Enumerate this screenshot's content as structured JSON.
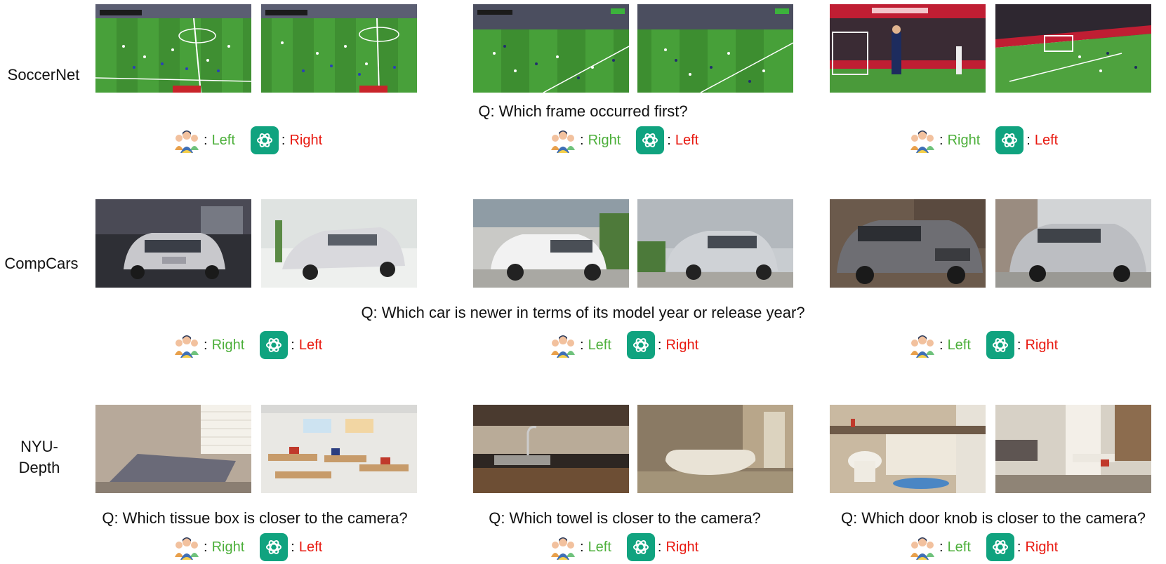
{
  "rows": [
    {
      "dataset": "SoccerNet",
      "questions": [
        "",
        "Q: Which frame occurred first?",
        ""
      ],
      "answers": [
        {
          "human": "Left",
          "gpt": "Right"
        },
        {
          "human": "Right",
          "gpt": "Left"
        },
        {
          "human": "Right",
          "gpt": "Left"
        }
      ]
    },
    {
      "dataset": "CompCars",
      "questions": [
        "",
        "Q: Which car is newer in terms of its model year or release year?",
        ""
      ],
      "answers": [
        {
          "human": "Right",
          "gpt": "Left"
        },
        {
          "human": "Left",
          "gpt": "Right"
        },
        {
          "human": "Left",
          "gpt": "Right"
        }
      ]
    },
    {
      "dataset_line1": "NYU-",
      "dataset_line2": "Depth",
      "questions": [
        "Q: Which tissue box is closer to the camera?",
        "Q: Which towel is closer to the camera?",
        "Q: Which door knob is closer to the camera?"
      ],
      "answers": [
        {
          "human": "Right",
          "gpt": "Left"
        },
        {
          "human": "Left",
          "gpt": "Right"
        },
        {
          "human": "Left",
          "gpt": "Right"
        }
      ]
    }
  ],
  "colors": {
    "human_answer": "#4caf3a",
    "gpt_answer": "#e8180f",
    "gpt_icon_bg": "#10a37f"
  },
  "icons": {
    "human": "human-annotators-icon",
    "model": "chatgpt-logo-icon"
  }
}
